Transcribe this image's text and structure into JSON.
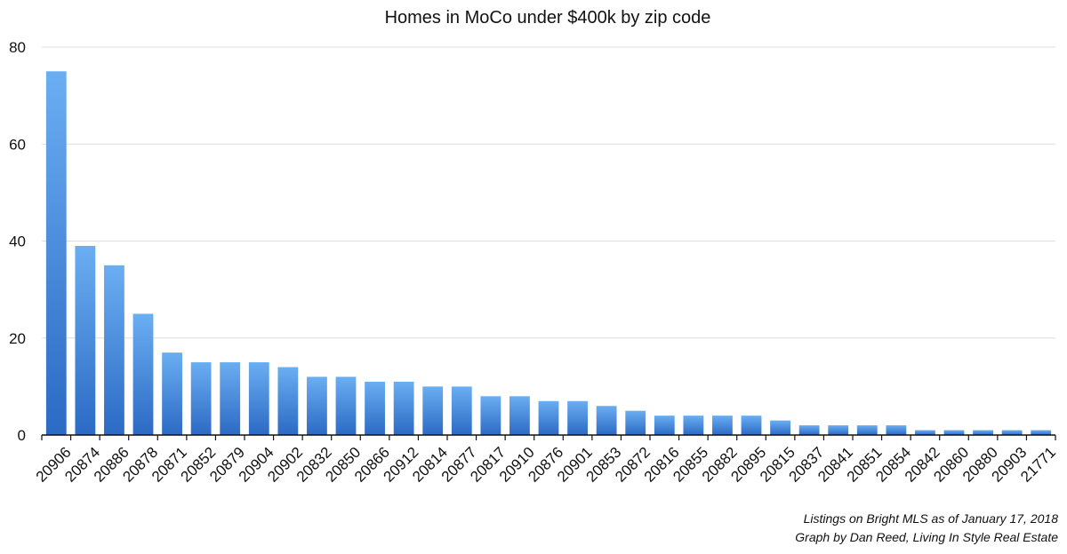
{
  "chart_data": {
    "type": "bar",
    "title": "Homes in MoCo under $400k by zip code",
    "xlabel": "",
    "ylabel": "",
    "ylim": [
      0,
      80
    ],
    "yticks": [
      0,
      20,
      40,
      60,
      80
    ],
    "grid": true,
    "legend": "none",
    "bar_color_top": "#6aaef2",
    "bar_color_bottom": "#2c6ac4",
    "categories": [
      "20906",
      "20874",
      "20886",
      "20878",
      "20871",
      "20852",
      "20879",
      "20904",
      "20902",
      "20832",
      "20850",
      "20866",
      "20912",
      "20814",
      "20877",
      "20817",
      "20910",
      "20876",
      "20901",
      "20853",
      "20872",
      "20816",
      "20855",
      "20882",
      "20895",
      "20815",
      "20837",
      "20841",
      "20851",
      "20854",
      "20842",
      "20860",
      "20880",
      "20903",
      "21771"
    ],
    "values": [
      75,
      39,
      35,
      25,
      17,
      15,
      15,
      15,
      14,
      12,
      12,
      11,
      11,
      10,
      10,
      8,
      8,
      7,
      7,
      6,
      5,
      4,
      4,
      4,
      4,
      3,
      2,
      2,
      2,
      2,
      1,
      1,
      1,
      1,
      1
    ]
  },
  "footer": {
    "line1": "Listings on Bright MLS as of January 17, 2018",
    "line2": "Graph by Dan Reed, Living In Style Real Estate"
  }
}
